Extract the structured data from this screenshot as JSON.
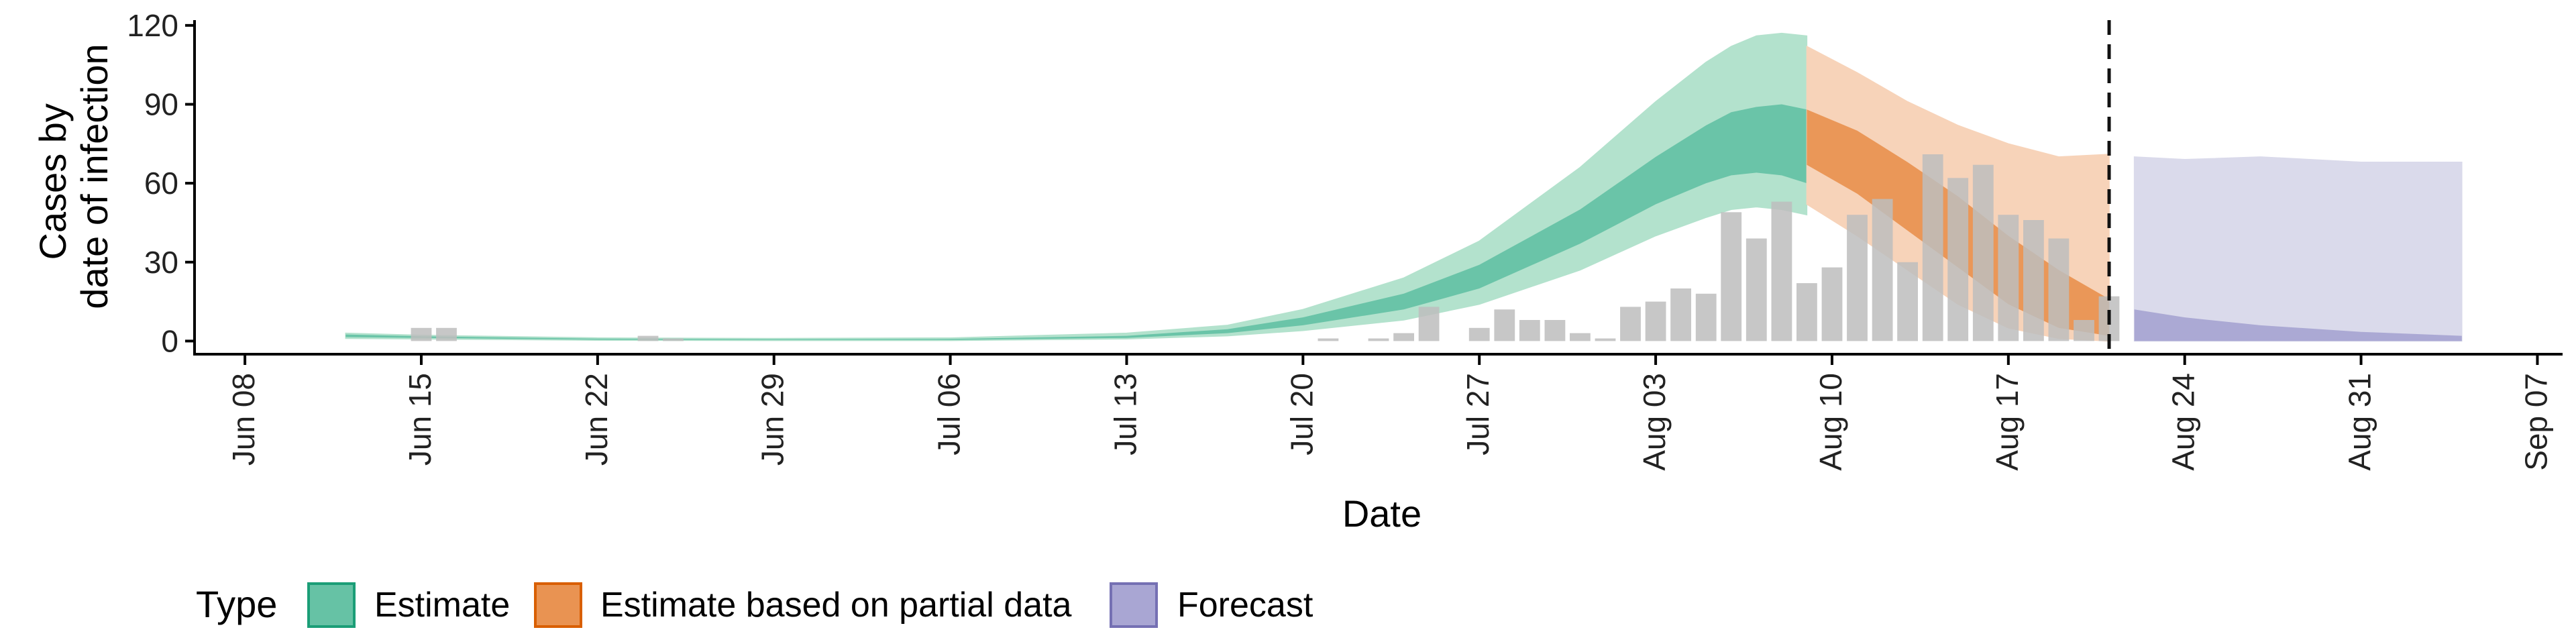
{
  "chart_data": {
    "type": "area",
    "title": "",
    "xlabel": "Date",
    "ylabel_lines": [
      "Cases by",
      "date of infection"
    ],
    "xlim": [
      "2020-06-06",
      "2020-09-08"
    ],
    "ylim": [
      -5,
      122
    ],
    "y_ticks": [
      0,
      30,
      60,
      90,
      120
    ],
    "x_ticks": [
      {
        "date": "2020-06-08",
        "label": "Jun 08"
      },
      {
        "date": "2020-06-15",
        "label": "Jun 15"
      },
      {
        "date": "2020-06-22",
        "label": "Jun 22"
      },
      {
        "date": "2020-06-29",
        "label": "Jun 29"
      },
      {
        "date": "2020-07-06",
        "label": "Jul 06"
      },
      {
        "date": "2020-07-13",
        "label": "Jul 13"
      },
      {
        "date": "2020-07-20",
        "label": "Jul 20"
      },
      {
        "date": "2020-07-27",
        "label": "Jul 27"
      },
      {
        "date": "2020-08-03",
        "label": "Aug 03"
      },
      {
        "date": "2020-08-10",
        "label": "Aug 10"
      },
      {
        "date": "2020-08-17",
        "label": "Aug 17"
      },
      {
        "date": "2020-08-24",
        "label": "Aug 24"
      },
      {
        "date": "2020-08-31",
        "label": "Aug 31"
      },
      {
        "date": "2020-09-07",
        "label": "Sep 07"
      }
    ],
    "grid": false,
    "legend": {
      "title": "Type",
      "position": "bottom-left",
      "entries": [
        {
          "label": "Estimate",
          "color": "#1b9e77"
        },
        {
          "label": "Estimate based on partial data",
          "color": "#d95f02"
        },
        {
          "label": "Forecast",
          "color": "#7570b3"
        }
      ]
    },
    "vline_date": "2020-08-21",
    "bars": {
      "color": "#bdbdbd",
      "points": [
        {
          "date": "2020-06-15",
          "value": 5
        },
        {
          "date": "2020-06-16",
          "value": 5
        },
        {
          "date": "2020-06-24",
          "value": 2
        },
        {
          "date": "2020-06-25",
          "value": 1
        },
        {
          "date": "2020-07-21",
          "value": 1
        },
        {
          "date": "2020-07-23",
          "value": 1
        },
        {
          "date": "2020-07-24",
          "value": 3
        },
        {
          "date": "2020-07-25",
          "value": 13
        },
        {
          "date": "2020-07-27",
          "value": 5
        },
        {
          "date": "2020-07-28",
          "value": 12
        },
        {
          "date": "2020-07-29",
          "value": 8
        },
        {
          "date": "2020-07-30",
          "value": 8
        },
        {
          "date": "2020-07-31",
          "value": 3
        },
        {
          "date": "2020-08-01",
          "value": 1
        },
        {
          "date": "2020-08-02",
          "value": 13
        },
        {
          "date": "2020-08-03",
          "value": 15
        },
        {
          "date": "2020-08-04",
          "value": 20
        },
        {
          "date": "2020-08-05",
          "value": 18
        },
        {
          "date": "2020-08-06",
          "value": 49
        },
        {
          "date": "2020-08-07",
          "value": 39
        },
        {
          "date": "2020-08-08",
          "value": 53
        },
        {
          "date": "2020-08-09",
          "value": 22
        },
        {
          "date": "2020-08-10",
          "value": 28
        },
        {
          "date": "2020-08-11",
          "value": 48
        },
        {
          "date": "2020-08-12",
          "value": 54
        },
        {
          "date": "2020-08-13",
          "value": 30
        },
        {
          "date": "2020-08-14",
          "value": 71
        },
        {
          "date": "2020-08-15",
          "value": 62
        },
        {
          "date": "2020-08-16",
          "value": 67
        },
        {
          "date": "2020-08-17",
          "value": 48
        },
        {
          "date": "2020-08-18",
          "value": 46
        },
        {
          "date": "2020-08-19",
          "value": 39
        },
        {
          "date": "2020-08-20",
          "value": 8
        },
        {
          "date": "2020-08-21",
          "value": 17
        }
      ]
    },
    "series": [
      {
        "type_label": "Estimate",
        "outer_color": "#b3e2cd",
        "inner_color": "#66c2a5",
        "points": [
          {
            "date": "2020-06-12",
            "lo90": 1,
            "hi90": 3,
            "lo50": 1.5,
            "hi50": 2.5
          },
          {
            "date": "2020-06-15",
            "lo90": 0.8,
            "hi90": 2.2,
            "lo50": 1.2,
            "hi50": 1.8
          },
          {
            "date": "2020-06-22",
            "lo90": 0.3,
            "hi90": 1.2,
            "lo50": 0.5,
            "hi50": 0.9
          },
          {
            "date": "2020-06-29",
            "lo90": 0.2,
            "hi90": 1,
            "lo50": 0.4,
            "hi50": 0.7
          },
          {
            "date": "2020-07-06",
            "lo90": 0.2,
            "hi90": 1.2,
            "lo50": 0.4,
            "hi50": 0.8
          },
          {
            "date": "2020-07-13",
            "lo90": 0.8,
            "hi90": 3,
            "lo50": 1.2,
            "hi50": 2
          },
          {
            "date": "2020-07-17",
            "lo90": 2,
            "hi90": 6,
            "lo50": 3,
            "hi50": 4.5
          },
          {
            "date": "2020-07-20",
            "lo90": 4,
            "hi90": 12,
            "lo50": 6,
            "hi50": 9
          },
          {
            "date": "2020-07-24",
            "lo90": 8,
            "hi90": 24,
            "lo50": 12,
            "hi50": 18
          },
          {
            "date": "2020-07-27",
            "lo90": 14,
            "hi90": 38,
            "lo50": 20,
            "hi50": 29
          },
          {
            "date": "2020-07-31",
            "lo90": 27,
            "hi90": 66,
            "lo50": 37,
            "hi50": 50
          },
          {
            "date": "2020-08-03",
            "lo90": 40,
            "hi90": 91,
            "lo50": 52,
            "hi50": 70
          },
          {
            "date": "2020-08-05",
            "lo90": 47,
            "hi90": 106,
            "lo50": 60,
            "hi50": 82
          },
          {
            "date": "2020-08-06",
            "lo90": 50,
            "hi90": 112,
            "lo50": 63,
            "hi50": 87
          },
          {
            "date": "2020-08-07",
            "lo90": 51,
            "hi90": 116,
            "lo50": 64,
            "hi50": 89
          },
          {
            "date": "2020-08-08",
            "lo90": 50,
            "hi90": 117,
            "lo50": 63,
            "hi50": 90
          },
          {
            "date": "2020-08-09",
            "lo90": 48,
            "hi90": 116,
            "lo50": 60,
            "hi50": 88
          }
        ]
      },
      {
        "type_label": "Estimate based on partial data",
        "outer_color": "#f7d3b9",
        "inner_color": "#e99352",
        "points": [
          {
            "date": "2020-08-09",
            "lo90": 52,
            "hi90": 112,
            "lo50": 67,
            "hi50": 88
          },
          {
            "date": "2020-08-11",
            "lo90": 40,
            "hi90": 102,
            "lo50": 56,
            "hi50": 80
          },
          {
            "date": "2020-08-13",
            "lo90": 27,
            "hi90": 91,
            "lo50": 42,
            "hi50": 68
          },
          {
            "date": "2020-08-15",
            "lo90": 14,
            "hi90": 82,
            "lo50": 28,
            "hi50": 55
          },
          {
            "date": "2020-08-17",
            "lo90": 5,
            "hi90": 75,
            "lo50": 14,
            "hi50": 40
          },
          {
            "date": "2020-08-19",
            "lo90": 1,
            "hi90": 70,
            "lo50": 5,
            "hi50": 27
          },
          {
            "date": "2020-08-21",
            "lo90": 0,
            "hi90": 71,
            "lo50": 2,
            "hi50": 16
          }
        ]
      },
      {
        "type_label": "Forecast",
        "outer_color": "#dadaeb",
        "inner_color": "#a9a6d3",
        "points": [
          {
            "date": "2020-08-22",
            "lo90": 0,
            "hi90": 70,
            "lo50": 0,
            "hi50": 12
          },
          {
            "date": "2020-08-24",
            "lo90": 0,
            "hi90": 69,
            "lo50": 0,
            "hi50": 9
          },
          {
            "date": "2020-08-27",
            "lo90": 0,
            "hi90": 70,
            "lo50": 0,
            "hi50": 6
          },
          {
            "date": "2020-08-31",
            "lo90": 0,
            "hi90": 68,
            "lo50": 0,
            "hi50": 3.5
          },
          {
            "date": "2020-09-04",
            "lo90": 0,
            "hi90": 68,
            "lo50": 0,
            "hi50": 2
          }
        ]
      }
    ]
  }
}
